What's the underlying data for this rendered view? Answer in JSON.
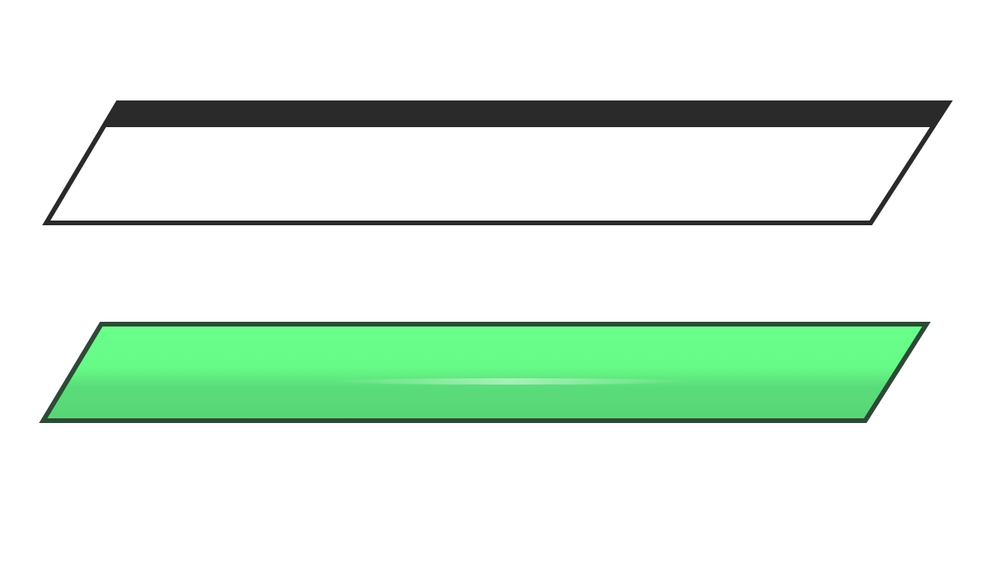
{
  "bars": {
    "empty_bar": {
      "fill_fraction": 0.0,
      "colors": {
        "fill": "#ffffff",
        "outline": "#2a2a2a",
        "top_band": "#2a2a2a"
      }
    },
    "full_bar": {
      "fill_fraction": 1.0,
      "colors": {
        "fill_light": "#6aff8a",
        "fill_dark": "#57d576",
        "outline": "#2d4a36",
        "highlight": "#a6ffc0"
      }
    }
  }
}
